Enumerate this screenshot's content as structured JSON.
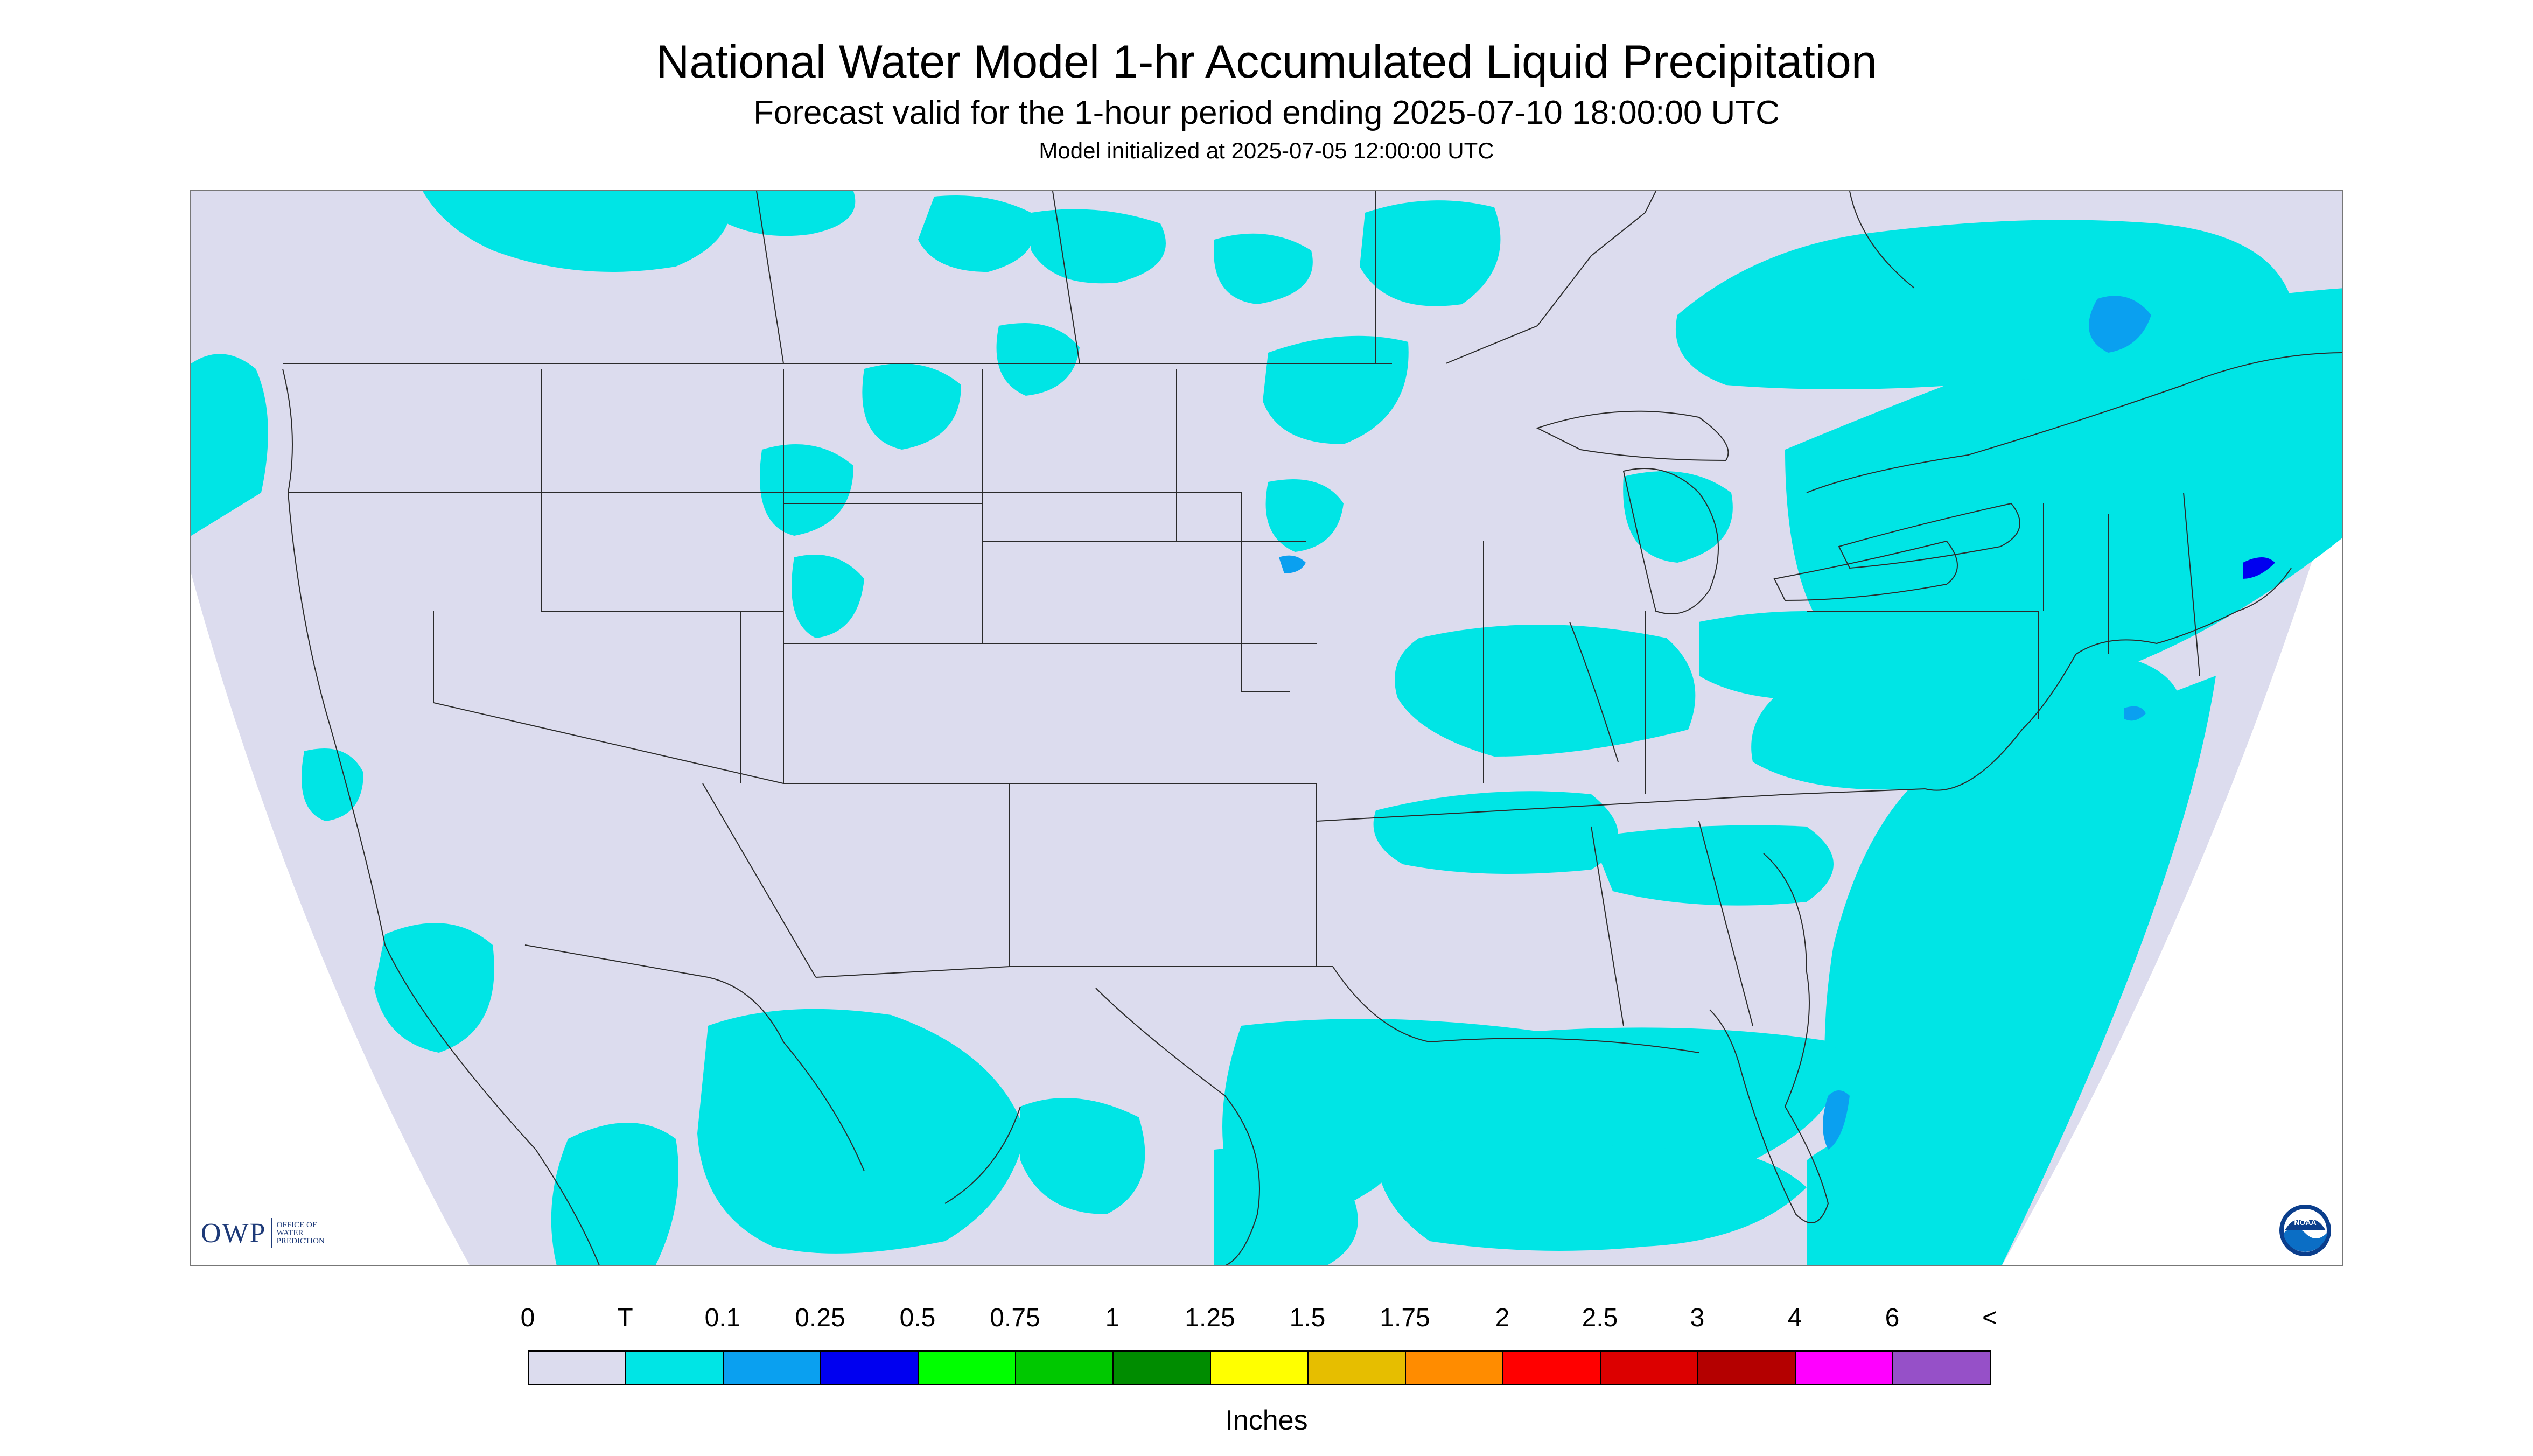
{
  "header": {
    "title": "National Water Model 1-hr Accumulated Liquid Precipitation",
    "subtitle": "Forecast valid for the 1-hour period ending 2025-07-10 18:00:00 UTC",
    "init": "Model initialized at 2025-07-05 12:00:00 UTC"
  },
  "map": {
    "background_color": "#dcdcee",
    "outside_color": "#ffffff",
    "boundary_color": "#2b2b2b",
    "precip_colors": {
      "trace": "#00e5e5",
      "light": "#0aa0f0",
      "moderate": "#0000f0"
    }
  },
  "logos": {
    "owp": {
      "big": "OWP",
      "line1": "OFFICE OF",
      "line2": "WATER",
      "line3": "PREDICTION"
    },
    "noaa": {
      "text": "NOAA",
      "icon": "noaa-logo-icon"
    }
  },
  "legend": {
    "labels": [
      "0",
      "T",
      "0.1",
      "0.25",
      "0.5",
      "0.75",
      "1",
      "1.25",
      "1.5",
      "1.75",
      "2",
      "2.5",
      "3",
      "4",
      "6",
      "<"
    ],
    "colors": [
      "#dcdcee",
      "#00e5e5",
      "#0aa0f0",
      "#0000f0",
      "#00ff00",
      "#00c800",
      "#008c00",
      "#ffff00",
      "#e6be00",
      "#ff8c00",
      "#ff0000",
      "#dc0000",
      "#b40000",
      "#ff00ff",
      "#9650c8"
    ],
    "units": "Inches"
  }
}
